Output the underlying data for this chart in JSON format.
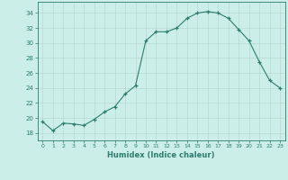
{
  "x": [
    0,
    1,
    2,
    3,
    4,
    5,
    6,
    7,
    8,
    9,
    10,
    11,
    12,
    13,
    14,
    15,
    16,
    17,
    18,
    19,
    20,
    21,
    22,
    23
  ],
  "y": [
    19.5,
    18.3,
    19.3,
    19.2,
    19.0,
    19.8,
    20.8,
    21.5,
    23.2,
    24.3,
    30.3,
    31.5,
    31.5,
    32.0,
    33.3,
    34.0,
    34.2,
    34.0,
    33.3,
    31.8,
    30.3,
    27.5,
    25.0,
    24.0
  ],
  "xlabel": "Humidex (Indice chaleur)",
  "xlim": [
    -0.5,
    23.5
  ],
  "ylim": [
    17,
    35.5
  ],
  "yticks": [
    18,
    20,
    22,
    24,
    26,
    28,
    30,
    32,
    34
  ],
  "xticks": [
    0,
    1,
    2,
    3,
    4,
    5,
    6,
    7,
    8,
    9,
    10,
    11,
    12,
    13,
    14,
    15,
    16,
    17,
    18,
    19,
    20,
    21,
    22,
    23
  ],
  "line_color": "#2d7d6e",
  "bg_color": "#cceee8",
  "grid_color": "#b8d8d2",
  "tick_color": "#2d7d6e",
  "xlabel_color": "#2d7d6e"
}
